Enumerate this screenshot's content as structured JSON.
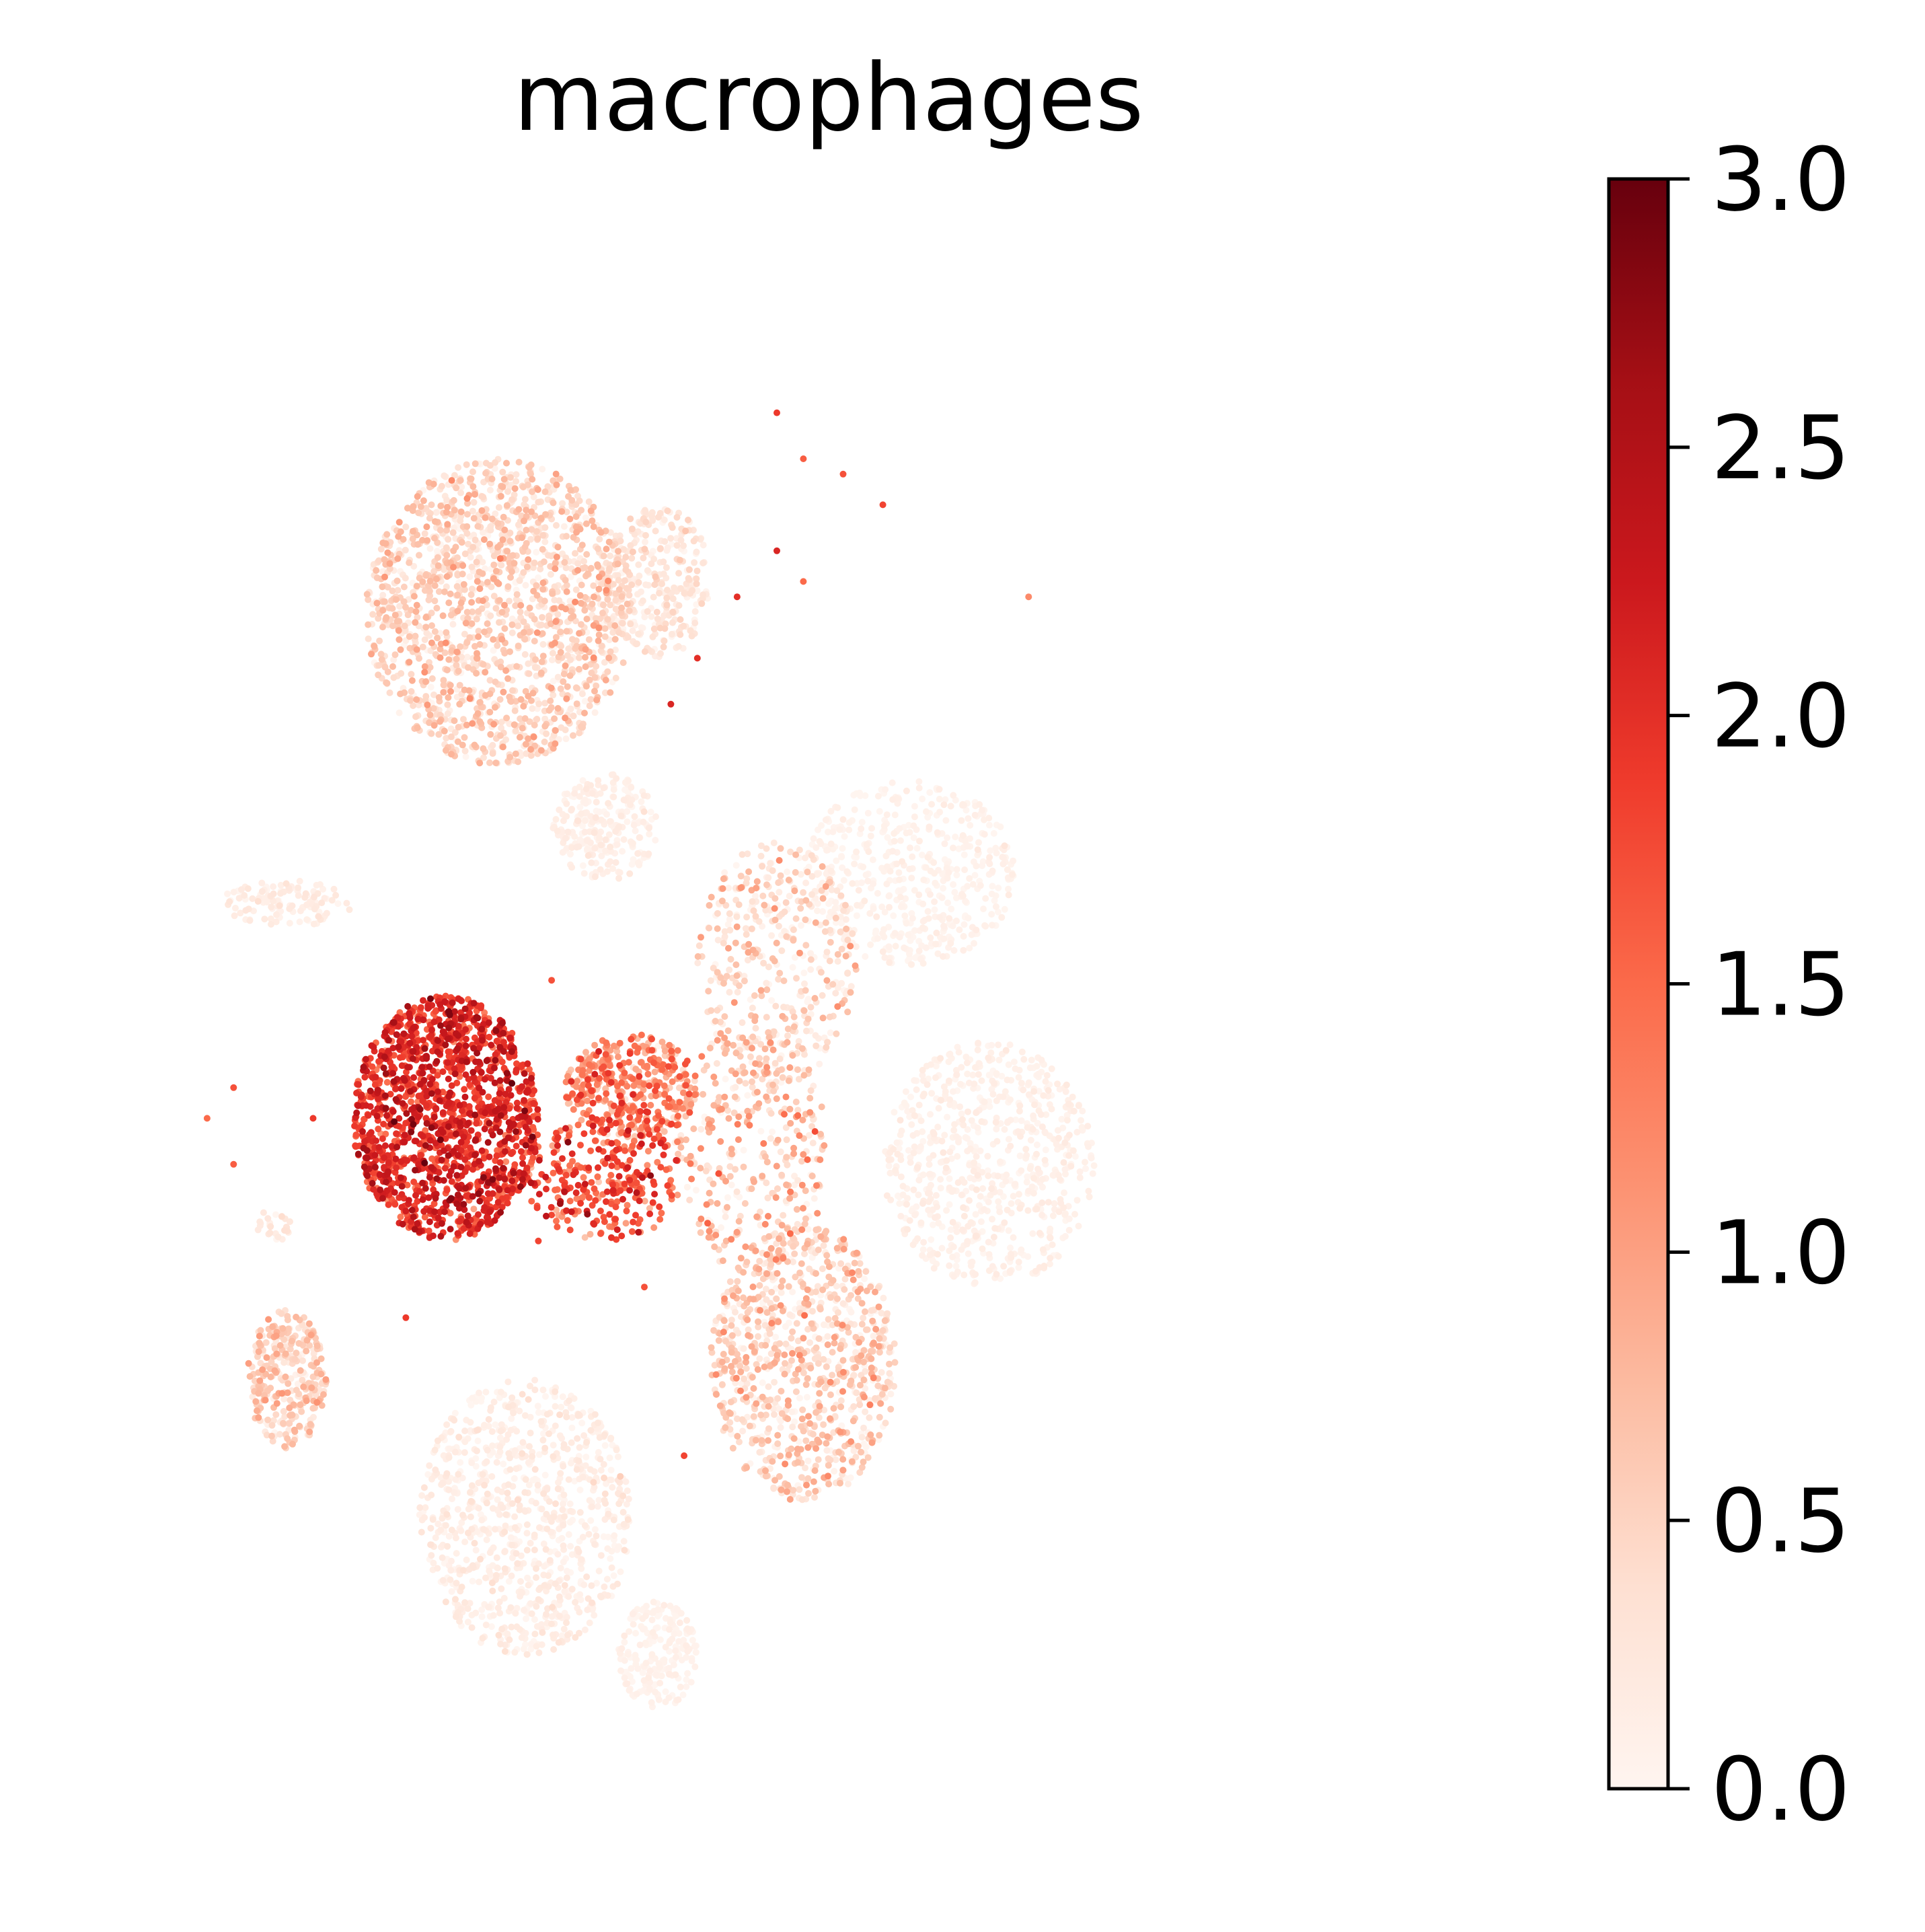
{
  "chart_data": {
    "type": "scatter",
    "title": "macrophages",
    "xlabel": "",
    "ylabel": "",
    "axes_visible": false,
    "grid": false,
    "colormap": "Reds",
    "colormap_stops": [
      "#fff5f0",
      "#fee0d2",
      "#fcbba1",
      "#fc9272",
      "#fb6a4a",
      "#ef3b2c",
      "#cb181d",
      "#a50f15",
      "#67000d"
    ],
    "colorbar": {
      "placement": "right",
      "range": [
        0.0,
        3.0
      ],
      "ticks": [
        0.0,
        0.5,
        1.0,
        1.5,
        2.0,
        2.5,
        3.0
      ],
      "tick_labels": [
        "0.0",
        "0.5",
        "1.0",
        "1.5",
        "2.0",
        "2.5",
        "3.0"
      ]
    },
    "xlim": [
      0,
      100
    ],
    "ylim": [
      0,
      100
    ],
    "clusters": [
      {
        "cx": 29,
        "cy": 75,
        "rx": 10,
        "ry": 10,
        "n": 1600,
        "mean": 0.45,
        "spread": 0.25
      },
      {
        "cx": 41,
        "cy": 77,
        "rx": 4,
        "ry": 5,
        "n": 300,
        "mean": 0.25,
        "spread": 0.15
      },
      {
        "cx": 37,
        "cy": 61,
        "rx": 4,
        "ry": 3.5,
        "n": 250,
        "mean": 0.1,
        "spread": 0.08
      },
      {
        "cx": 60,
        "cy": 58,
        "rx": 8,
        "ry": 6,
        "n": 500,
        "mean": 0.05,
        "spread": 0.05
      },
      {
        "cx": 50,
        "cy": 52,
        "rx": 6,
        "ry": 8,
        "n": 400,
        "mean": 0.4,
        "spread": 0.3
      },
      {
        "cx": 66,
        "cy": 39,
        "rx": 8,
        "ry": 8,
        "n": 700,
        "mean": 0.08,
        "spread": 0.06
      },
      {
        "cx": 25,
        "cy": 42,
        "rx": 7,
        "ry": 8,
        "n": 1500,
        "mean": 1.95,
        "spread": 0.35
      },
      {
        "cx": 39,
        "cy": 44,
        "rx": 5,
        "ry": 3.5,
        "n": 400,
        "mean": 1.2,
        "spread": 0.4
      },
      {
        "cx": 37,
        "cy": 38,
        "rx": 6,
        "ry": 4,
        "n": 300,
        "mean": 1.6,
        "spread": 0.4
      },
      {
        "cx": 48,
        "cy": 40,
        "rx": 6,
        "ry": 8,
        "n": 350,
        "mean": 0.6,
        "spread": 0.4
      },
      {
        "cx": 52,
        "cy": 26,
        "rx": 7,
        "ry": 9,
        "n": 900,
        "mean": 0.45,
        "spread": 0.3
      },
      {
        "cx": 31,
        "cy": 16,
        "rx": 8,
        "ry": 9,
        "n": 900,
        "mean": 0.12,
        "spread": 0.1
      },
      {
        "cx": 13,
        "cy": 25,
        "rx": 3,
        "ry": 4.5,
        "n": 300,
        "mean": 0.5,
        "spread": 0.25
      },
      {
        "cx": 41,
        "cy": 7,
        "rx": 3,
        "ry": 3.5,
        "n": 200,
        "mean": 0.05,
        "spread": 0.05
      },
      {
        "cx": 13,
        "cy": 56,
        "rx": 5,
        "ry": 1.5,
        "n": 120,
        "mean": 0.15,
        "spread": 0.1
      },
      {
        "cx": 12,
        "cy": 35,
        "rx": 1.5,
        "ry": 1,
        "n": 25,
        "mean": 0.2,
        "spread": 0.1
      }
    ],
    "outliers": [
      {
        "x": 50,
        "y": 88,
        "v": 1.9
      },
      {
        "x": 52,
        "y": 85,
        "v": 1.6
      },
      {
        "x": 55,
        "y": 84,
        "v": 1.7
      },
      {
        "x": 58,
        "y": 82,
        "v": 1.8
      },
      {
        "x": 50,
        "y": 79,
        "v": 2.1
      },
      {
        "x": 52,
        "y": 77,
        "v": 1.5
      },
      {
        "x": 47,
        "y": 76,
        "v": 2.0
      },
      {
        "x": 44,
        "y": 72,
        "v": 2.0
      },
      {
        "x": 42,
        "y": 69,
        "v": 2.1
      },
      {
        "x": 69,
        "y": 76,
        "v": 1.2
      },
      {
        "x": 7,
        "y": 42,
        "v": 1.5
      },
      {
        "x": 9,
        "y": 44,
        "v": 1.7
      },
      {
        "x": 15,
        "y": 42,
        "v": 1.9
      },
      {
        "x": 9,
        "y": 39,
        "v": 1.6
      },
      {
        "x": 22,
        "y": 29,
        "v": 1.9
      },
      {
        "x": 43,
        "y": 20,
        "v": 1.8
      },
      {
        "x": 40,
        "y": 31,
        "v": 1.7
      },
      {
        "x": 32,
        "y": 34,
        "v": 1.8
      },
      {
        "x": 33,
        "y": 51,
        "v": 1.7
      }
    ]
  }
}
